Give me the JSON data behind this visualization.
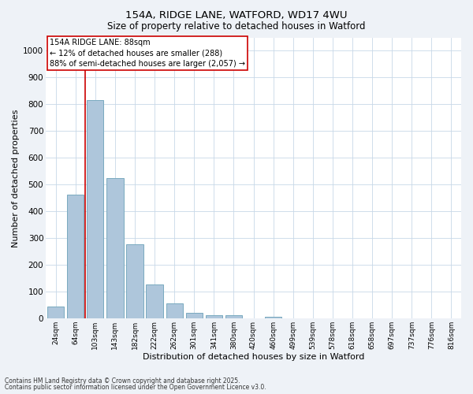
{
  "title1": "154A, RIDGE LANE, WATFORD, WD17 4WU",
  "title2": "Size of property relative to detached houses in Watford",
  "xlabel": "Distribution of detached houses by size in Watford",
  "ylabel": "Number of detached properties",
  "categories": [
    "24sqm",
    "64sqm",
    "103sqm",
    "143sqm",
    "182sqm",
    "222sqm",
    "262sqm",
    "301sqm",
    "341sqm",
    "380sqm",
    "420sqm",
    "460sqm",
    "499sqm",
    "539sqm",
    "578sqm",
    "618sqm",
    "658sqm",
    "697sqm",
    "737sqm",
    "776sqm",
    "816sqm"
  ],
  "values": [
    45,
    463,
    815,
    525,
    278,
    128,
    57,
    22,
    12,
    13,
    0,
    5,
    0,
    0,
    0,
    0,
    0,
    0,
    0,
    0,
    0
  ],
  "bar_color": "#aec6db",
  "bar_edge_color": "#7aaabf",
  "vline_x": 1.5,
  "vline_color": "#cc0000",
  "annotation_text": "154A RIDGE LANE: 88sqm\n← 12% of detached houses are smaller (288)\n88% of semi-detached houses are larger (2,057) →",
  "annotation_box_color": "#ffffff",
  "annotation_box_edge": "#cc0000",
  "ylim": [
    0,
    1050
  ],
  "yticks": [
    0,
    100,
    200,
    300,
    400,
    500,
    600,
    700,
    800,
    900,
    1000
  ],
  "footnote1": "Contains HM Land Registry data © Crown copyright and database right 2025.",
  "footnote2": "Contains public sector information licensed under the Open Government Licence v3.0.",
  "bg_color": "#eef2f7",
  "plot_bg_color": "#ffffff",
  "grid_color": "#c8d8e8"
}
